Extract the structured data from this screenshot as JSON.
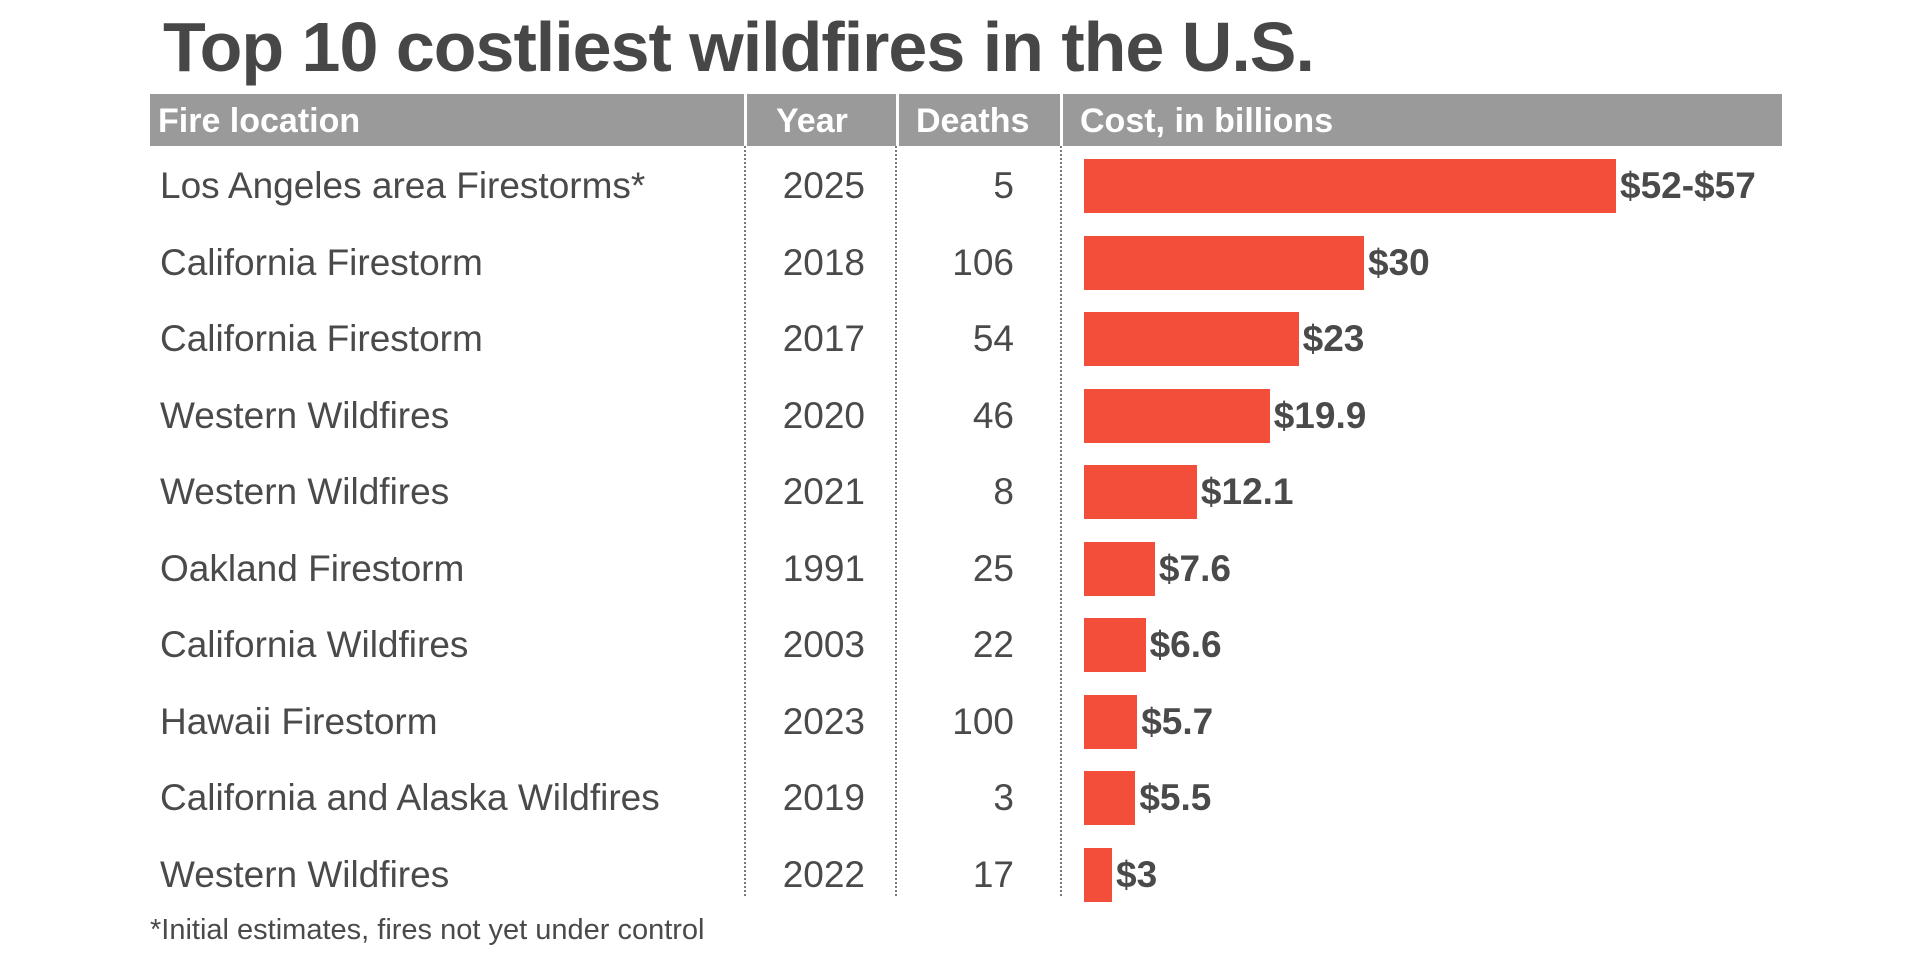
{
  "title": "Top 10 costliest wildfires in the U.S.",
  "headers": {
    "location": "Fire location",
    "year": "Year",
    "deaths": "Deaths",
    "cost": "Cost, in billions"
  },
  "footnote": "*Initial estimates, fires not yet under control",
  "colors": {
    "bar": "#f24e3a",
    "header": "#9a9a9a",
    "text": "#4a4a4a"
  },
  "chart_data": {
    "type": "bar",
    "title": "Top 10 costliest wildfires in the U.S.",
    "orientation": "horizontal",
    "categories": [
      "Los Angeles area Firestorms*",
      "California Firestorm",
      "California Firestorm",
      "Western Wildfires",
      "Western Wildfires",
      "Oakland Firestorm",
      "California Wildfires",
      "Hawaii Firestorm",
      "California and Alaska Wildfires",
      "Western Wildfires"
    ],
    "years": [
      "2025",
      "2018",
      "2017",
      "2020",
      "2021",
      "1991",
      "2003",
      "2023",
      "2019",
      "2022"
    ],
    "deaths": [
      "5",
      "106",
      "54",
      "46",
      "8",
      "25",
      "22",
      "100",
      "3",
      "17"
    ],
    "values": [
      57,
      30,
      23,
      19.9,
      12.1,
      7.6,
      6.6,
      5.7,
      5.5,
      3
    ],
    "value_labels": [
      "$52-$57",
      "$30",
      "$23",
      "$19.9",
      "$12.1",
      "$7.6",
      "$6.6",
      "$5.7",
      "$5.5",
      "$3"
    ],
    "xlim": [
      0,
      57
    ],
    "grid": false
  }
}
